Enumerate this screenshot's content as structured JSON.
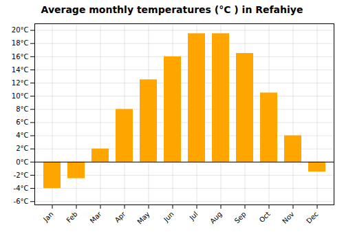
{
  "chart_data": {
    "type": "bar",
    "title": "Average monthly temperatures (°C ) in Refahiye",
    "categories": [
      "Jan",
      "Feb",
      "Mar",
      "Apr",
      "May",
      "Jun",
      "Jul",
      "Aug",
      "Sep",
      "Oct",
      "Nov",
      "Dec"
    ],
    "values": [
      -4.0,
      -2.5,
      2.0,
      8.0,
      12.5,
      16.0,
      19.5,
      19.5,
      16.5,
      10.5,
      4.0,
      -1.5
    ],
    "color": "#FFA500",
    "ylim": [
      -6.5,
      21
    ],
    "yticks": [
      {
        "value": -6,
        "label": "-6°C"
      },
      {
        "value": -4,
        "label": "-4°C"
      },
      {
        "value": -2,
        "label": "-2°C"
      },
      {
        "value": 0,
        "label": "0°C"
      },
      {
        "value": 2,
        "label": "2°C"
      },
      {
        "value": 4,
        "label": "4°C"
      },
      {
        "value": 6,
        "label": "6°C"
      },
      {
        "value": 8,
        "label": "8°C"
      },
      {
        "value": 10,
        "label": "10°C"
      },
      {
        "value": 12,
        "label": "12°C"
      },
      {
        "value": 14,
        "label": "14°C"
      },
      {
        "value": 16,
        "label": "16°C"
      },
      {
        "value": 18,
        "label": "18°C"
      },
      {
        "value": 20,
        "label": "20°C"
      }
    ],
    "grid": true
  }
}
